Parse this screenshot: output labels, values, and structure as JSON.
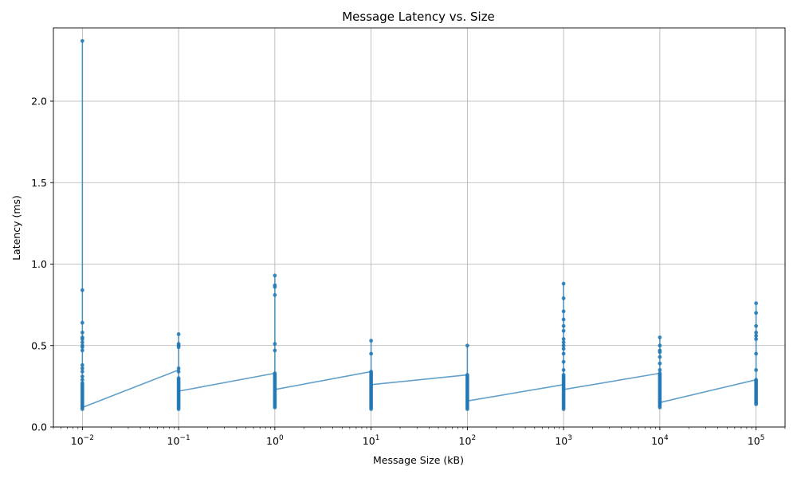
{
  "chart_data": {
    "type": "line",
    "title": "Message Latency vs. Size",
    "xlabel": "Message Size (kB)",
    "ylabel": "Latency (ms)",
    "xscale": "log",
    "xlim": [
      0.005,
      200000
    ],
    "ylim": [
      -0.0,
      2.45
    ],
    "grid": true,
    "color": "#1f77b4",
    "x_ticks": [
      {
        "value": 0.01,
        "base": "10",
        "exp": "−2"
      },
      {
        "value": 0.1,
        "base": "10",
        "exp": "−1"
      },
      {
        "value": 1,
        "base": "10",
        "exp": "0"
      },
      {
        "value": 10,
        "base": "10",
        "exp": "1"
      },
      {
        "value": 100,
        "base": "10",
        "exp": "2"
      },
      {
        "value": 1000,
        "base": "10",
        "exp": "3"
      },
      {
        "value": 10000,
        "base": "10",
        "exp": "4"
      },
      {
        "value": 100000,
        "base": "10",
        "exp": "5"
      }
    ],
    "y_ticks": [
      {
        "value": 0.0,
        "label": "0.0"
      },
      {
        "value": 0.5,
        "label": "0.5"
      },
      {
        "value": 1.0,
        "label": "1.0"
      },
      {
        "value": 1.5,
        "label": "1.5"
      },
      {
        "value": 2.0,
        "label": "2.0"
      }
    ],
    "series": [
      {
        "size_kb": 0.01,
        "first": 0.22,
        "last": 0.12,
        "samples": [
          2.37,
          0.84,
          0.64,
          0.58,
          0.55,
          0.54,
          0.52,
          0.5,
          0.49,
          0.47,
          0.38,
          0.36,
          0.34,
          0.31,
          0.29,
          0.27,
          0.26,
          0.25,
          0.24,
          0.23,
          0.22,
          0.21,
          0.2,
          0.19,
          0.18,
          0.17,
          0.16,
          0.15,
          0.14,
          0.13,
          0.12,
          0.11
        ],
        "next": 0.35
      },
      {
        "size_kb": 0.1,
        "first": 0.35,
        "last": 0.22,
        "samples": [
          0.57,
          0.51,
          0.5,
          0.49,
          0.36,
          0.34,
          0.3,
          0.29,
          0.28,
          0.27,
          0.26,
          0.25,
          0.24,
          0.23,
          0.22,
          0.21,
          0.2,
          0.19,
          0.18,
          0.17,
          0.16,
          0.15,
          0.14,
          0.13,
          0.12,
          0.11
        ],
        "next": 0.33
      },
      {
        "size_kb": 1,
        "first": 0.33,
        "last": 0.23,
        "samples": [
          0.93,
          0.87,
          0.86,
          0.81,
          0.51,
          0.47,
          0.33,
          0.32,
          0.31,
          0.3,
          0.29,
          0.28,
          0.27,
          0.26,
          0.25,
          0.24,
          0.23,
          0.22,
          0.21,
          0.2,
          0.19,
          0.18,
          0.17,
          0.16,
          0.15,
          0.14,
          0.13,
          0.12
        ],
        "next": 0.34
      },
      {
        "size_kb": 10,
        "first": 0.34,
        "last": 0.26,
        "samples": [
          0.53,
          0.45,
          0.34,
          0.33,
          0.32,
          0.31,
          0.3,
          0.29,
          0.28,
          0.27,
          0.26,
          0.25,
          0.24,
          0.23,
          0.22,
          0.21,
          0.2,
          0.19,
          0.18,
          0.17,
          0.16,
          0.15,
          0.14,
          0.13,
          0.12,
          0.11
        ],
        "next": 0.32
      },
      {
        "size_kb": 100,
        "first": 0.32,
        "last": 0.16,
        "samples": [
          0.5,
          0.32,
          0.31,
          0.3,
          0.29,
          0.28,
          0.27,
          0.26,
          0.25,
          0.24,
          0.23,
          0.22,
          0.21,
          0.2,
          0.19,
          0.18,
          0.17,
          0.16,
          0.15,
          0.14,
          0.13,
          0.12,
          0.11
        ],
        "next": 0.26
      },
      {
        "size_kb": 1000,
        "first": 0.26,
        "last": 0.23,
        "samples": [
          0.88,
          0.79,
          0.71,
          0.66,
          0.62,
          0.59,
          0.54,
          0.52,
          0.5,
          0.48,
          0.45,
          0.4,
          0.35,
          0.32,
          0.31,
          0.3,
          0.29,
          0.28,
          0.27,
          0.26,
          0.25,
          0.24,
          0.23,
          0.22,
          0.21,
          0.2,
          0.19,
          0.18,
          0.17,
          0.16,
          0.15,
          0.14,
          0.13,
          0.12,
          0.11
        ],
        "next": 0.33
      },
      {
        "size_kb": 10000,
        "first": 0.33,
        "last": 0.15,
        "samples": [
          0.55,
          0.5,
          0.47,
          0.46,
          0.43,
          0.39,
          0.35,
          0.33,
          0.32,
          0.31,
          0.3,
          0.29,
          0.28,
          0.27,
          0.26,
          0.25,
          0.24,
          0.23,
          0.22,
          0.21,
          0.2,
          0.19,
          0.18,
          0.17,
          0.16,
          0.15,
          0.14,
          0.13,
          0.12
        ],
        "next": 0.29
      },
      {
        "size_kb": 100000,
        "first": 0.29,
        "last": 0.29,
        "samples": [
          0.76,
          0.7,
          0.62,
          0.58,
          0.56,
          0.54,
          0.45,
          0.35,
          0.29,
          0.28,
          0.27,
          0.26,
          0.25,
          0.24,
          0.23,
          0.22,
          0.21,
          0.2,
          0.19,
          0.18,
          0.17,
          0.16,
          0.15,
          0.14
        ],
        "next": null
      }
    ]
  }
}
